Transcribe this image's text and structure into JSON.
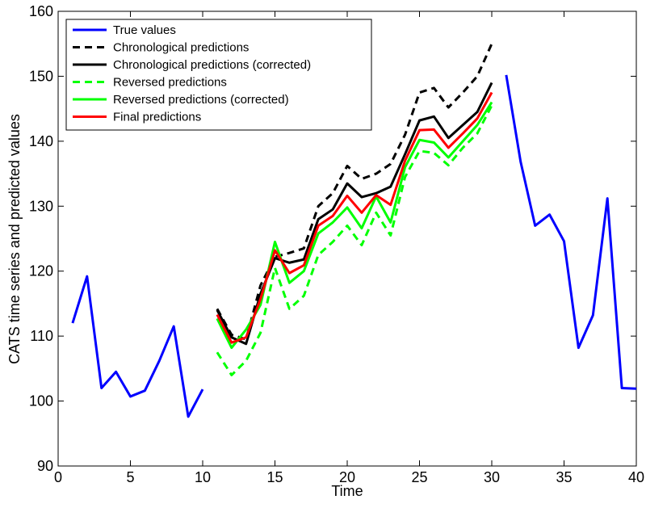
{
  "chart_data": {
    "type": "line",
    "xlabel": "Time",
    "ylabel": "CATS time series and predicted values",
    "x": [
      1,
      2,
      3,
      4,
      5,
      6,
      7,
      8,
      9,
      10,
      11,
      12,
      13,
      14,
      15,
      16,
      17,
      18,
      19,
      20,
      21,
      22,
      23,
      24,
      25,
      26,
      27,
      28,
      29,
      30,
      31,
      32,
      33,
      34,
      35,
      36,
      37,
      38,
      39,
      40
    ],
    "xlim": [
      0,
      40
    ],
    "xticks": [
      0,
      5,
      10,
      15,
      20,
      25,
      30,
      35,
      40
    ],
    "ylim": [
      90,
      160
    ],
    "yticks": [
      90,
      100,
      110,
      120,
      130,
      140,
      150,
      160
    ],
    "grid": false,
    "legend": "upper left",
    "series": [
      {
        "name": "True values",
        "color": "#0000ff",
        "dashed": false,
        "values": [
          112,
          119.2,
          102,
          104.5,
          100.7,
          101.6,
          106.2,
          111.5,
          97.6,
          101.8,
          null,
          null,
          null,
          null,
          null,
          null,
          null,
          null,
          null,
          null,
          null,
          null,
          null,
          null,
          null,
          null,
          null,
          null,
          null,
          null,
          150.2,
          136.8,
          127,
          128.7,
          124.6,
          108.2,
          113.2,
          131.2,
          102,
          101.9
        ]
      },
      {
        "name": "Chronological predictions",
        "color": "#000000",
        "dashed": true,
        "values": [
          null,
          null,
          null,
          null,
          null,
          null,
          null,
          null,
          null,
          null,
          114.2,
          110.2,
          109.5,
          117.8,
          122.2,
          122.8,
          123.5,
          130,
          132,
          136.2,
          134.2,
          135,
          136.5,
          141,
          147.5,
          148.2,
          145.2,
          147.5,
          150,
          155,
          null,
          null,
          null,
          null,
          null,
          null,
          null,
          null,
          null,
          null
        ]
      },
      {
        "name": "Chronological predictions (corrected)",
        "color": "#000000",
        "dashed": false,
        "values": [
          null,
          null,
          null,
          null,
          null,
          null,
          null,
          null,
          null,
          null,
          114,
          109.8,
          108.8,
          116.5,
          122,
          121.3,
          121.8,
          128,
          129.5,
          133.5,
          131.4,
          132,
          133,
          138,
          143.2,
          143.8,
          140.5,
          142.5,
          144.5,
          149,
          null,
          null,
          null,
          null,
          null,
          null,
          null,
          null,
          null,
          null
        ]
      },
      {
        "name": "Reversed predictions",
        "color": "#00ff00",
        "dashed": true,
        "values": [
          null,
          null,
          null,
          null,
          null,
          null,
          null,
          null,
          null,
          null,
          107.5,
          104,
          106.2,
          110.5,
          120.5,
          114.2,
          116.2,
          122.5,
          124.5,
          127,
          124,
          129,
          125.5,
          134.5,
          138.5,
          138.2,
          136.3,
          139,
          141.2,
          145.5,
          null,
          null,
          null,
          null,
          null,
          null,
          null,
          null,
          null,
          null
        ]
      },
      {
        "name": "Reversed predictions (corrected)",
        "color": "#00ff00",
        "dashed": false,
        "values": [
          null,
          null,
          null,
          null,
          null,
          null,
          null,
          null,
          null,
          null,
          112.7,
          108.2,
          111,
          114.8,
          124.5,
          118.2,
          120,
          125.8,
          127.5,
          129.8,
          126.6,
          131.5,
          127.5,
          136,
          140.2,
          139.8,
          137.5,
          140,
          142.5,
          146,
          null,
          null,
          null,
          null,
          null,
          null,
          null,
          null,
          null,
          null
        ]
      },
      {
        "name": "Final predictions",
        "color": "#ff0000",
        "dashed": false,
        "values": [
          null,
          null,
          null,
          null,
          null,
          null,
          null,
          null,
          null,
          null,
          113.3,
          109,
          109.8,
          115.7,
          123.2,
          119.7,
          120.9,
          127,
          128.5,
          131.6,
          129,
          131.7,
          130.2,
          137,
          141.7,
          141.8,
          139,
          141.2,
          143.5,
          147.5,
          null,
          null,
          null,
          null,
          null,
          null,
          null,
          null,
          null,
          null
        ]
      }
    ]
  }
}
